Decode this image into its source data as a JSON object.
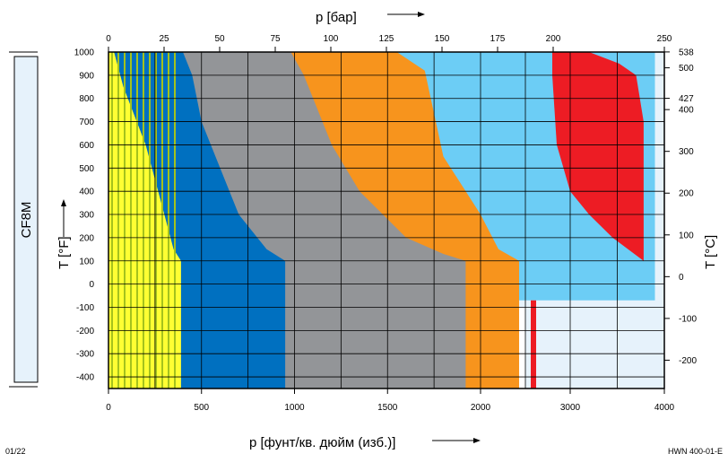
{
  "chart_data": {
    "type": "area",
    "material_label": "CF8M",
    "top_axis": {
      "title": "p [бар]",
      "ticks": [
        "0",
        "25",
        "50",
        "75",
        "100",
        "125",
        "150",
        "175",
        "200",
        "250"
      ],
      "tick_values": [
        0,
        25,
        50,
        75,
        100,
        125,
        150,
        175,
        200,
        250
      ]
    },
    "bottom_axis": {
      "title": "p [фунт/кв. дюйм (изб.)]",
      "ticks": [
        "0",
        "500",
        "1000",
        "1500",
        "2000",
        "3000",
        "4000"
      ],
      "tick_values": [
        0,
        500,
        1000,
        1500,
        2000,
        3000,
        4000
      ],
      "xlim": [
        0,
        4000
      ]
    },
    "left_axis": {
      "title": "T [°F]",
      "ticks": [
        "1000",
        "900",
        "800",
        "700",
        "600",
        "500",
        "400",
        "300",
        "200",
        "100",
        "0",
        "-100",
        "-200",
        "-300",
        "-400"
      ],
      "tick_values": [
        1000,
        900,
        800,
        700,
        600,
        500,
        400,
        300,
        200,
        100,
        0,
        -100,
        -200,
        -300,
        -400
      ],
      "ylim": [
        -450,
        1000
      ]
    },
    "right_axis": {
      "title": "T [°C]",
      "ticks": [
        "538",
        "500",
        "427",
        "400",
        "300",
        "200",
        "100",
        "0",
        "-100",
        "-200"
      ],
      "tick_values": [
        538,
        500,
        427,
        400,
        300,
        200,
        100,
        0,
        -100,
        -200
      ]
    },
    "footer_left": "01/22",
    "footer_right": "HWN 400-01-E",
    "grid": true,
    "series": [
      {
        "color": "#e6f2fb",
        "points": [
          [
            0,
            1000
          ],
          [
            2500,
            1000
          ],
          [
            4000,
            1000
          ],
          [
            4000,
            -450
          ],
          [
            2500,
            -450
          ],
          [
            2500,
            -100
          ],
          [
            0,
            -100
          ]
        ]
      },
      {
        "color": "#6ccdf5",
        "points": [
          [
            0,
            1000
          ],
          [
            3900,
            1000
          ],
          [
            3900,
            -70
          ],
          [
            2250,
            -70
          ],
          [
            2250,
            -450
          ],
          [
            0,
            -450
          ]
        ]
      },
      {
        "color": "#f7941d",
        "points": [
          [
            0,
            1000
          ],
          [
            1550,
            1000
          ],
          [
            1700,
            920
          ],
          [
            1800,
            550
          ],
          [
            2000,
            300
          ],
          [
            2200,
            150
          ],
          [
            2430,
            100
          ],
          [
            2430,
            -450
          ],
          [
            0,
            -450
          ]
        ]
      },
      {
        "color": "#939598",
        "points": [
          [
            0,
            1000
          ],
          [
            980,
            1000
          ],
          [
            1050,
            900
          ],
          [
            1200,
            600
          ],
          [
            1350,
            400
          ],
          [
            1600,
            200
          ],
          [
            1800,
            130
          ],
          [
            1920,
            100
          ],
          [
            1920,
            -450
          ],
          [
            0,
            -450
          ]
        ]
      },
      {
        "color": "#0070c0",
        "points": [
          [
            0,
            1000
          ],
          [
            400,
            1000
          ],
          [
            450,
            900
          ],
          [
            500,
            700
          ],
          [
            600,
            500
          ],
          [
            700,
            300
          ],
          [
            850,
            150
          ],
          [
            950,
            100
          ],
          [
            950,
            -450
          ],
          [
            0,
            -450
          ]
        ]
      },
      {
        "color": "#ffff33",
        "points": [
          [
            0,
            1000
          ],
          [
            30,
            1000
          ],
          [
            80,
            850
          ],
          [
            200,
            600
          ],
          [
            300,
            300
          ],
          [
            350,
            150
          ],
          [
            390,
            100
          ],
          [
            390,
            -450
          ],
          [
            0,
            -450
          ]
        ]
      },
      {
        "color": "#ed1c24",
        "points": [
          [
            2800,
            1000
          ],
          [
            3200,
            1000
          ],
          [
            3520,
            950
          ],
          [
            3700,
            900
          ],
          [
            3780,
            700
          ],
          [
            3780,
            100
          ],
          [
            3450,
            200
          ],
          [
            3200,
            300
          ],
          [
            3000,
            400
          ],
          [
            2850,
            600
          ],
          [
            2800,
            900
          ]
        ]
      },
      {
        "color": "#ed1c24",
        "points": [
          [
            2560,
            -70
          ],
          [
            2620,
            -70
          ],
          [
            2620,
            -450
          ],
          [
            2560,
            -450
          ]
        ]
      }
    ]
  }
}
